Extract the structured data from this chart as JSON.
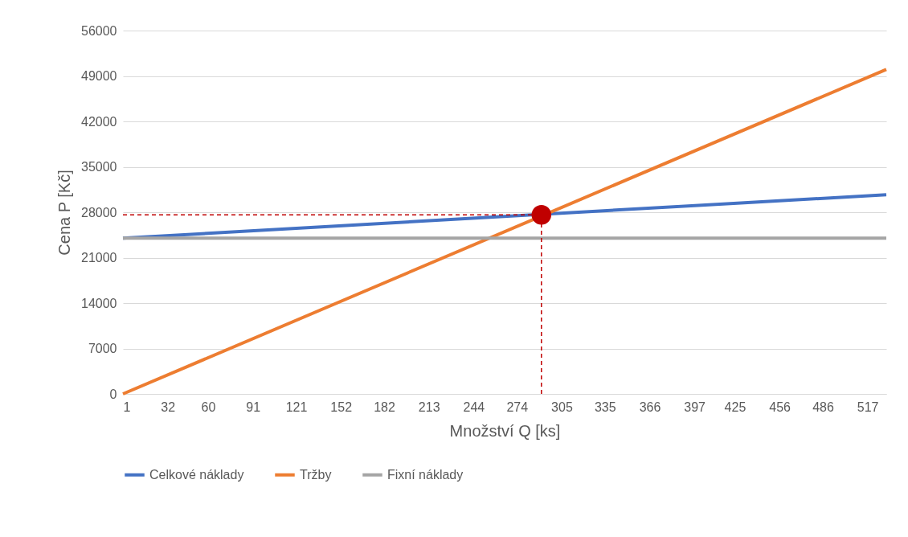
{
  "chart_data": {
    "type": "line",
    "xlabel": "Množství Q [ks]",
    "ylabel": "Cena P [Kč]",
    "xlim": [
      1,
      530
    ],
    "xticks": [
      1,
      32,
      60,
      91,
      121,
      152,
      182,
      213,
      244,
      274,
      305,
      335,
      366,
      397,
      425,
      456,
      486,
      517
    ],
    "ylim": [
      0,
      56000
    ],
    "yticks": [
      0,
      7000,
      14000,
      21000,
      28000,
      35000,
      42000,
      49000,
      56000
    ],
    "grid": "y",
    "legend": "bottom",
    "series": [
      {
        "name": "Celkové náklady",
        "color": "#4472c4",
        "x": [
          1,
          530
        ],
        "values": [
          24000,
          30700
        ]
      },
      {
        "name": "Tržby",
        "color": "#ed7d31",
        "x": [
          1,
          530
        ],
        "values": [
          0,
          50000
        ]
      },
      {
        "name": "Fixní náklady",
        "color": "#a5a5a5",
        "x": [
          1,
          530
        ],
        "values": [
          24000,
          24000
        ]
      },
      {
        "type": "scatter",
        "color": "#c00000",
        "x": [
          291
        ],
        "values": [
          27600
        ]
      }
    ],
    "ref_lines": [
      {
        "axis": "x",
        "value": 291,
        "color": "#c00000",
        "line_style": "dashed"
      },
      {
        "axis": "y",
        "value": 27600,
        "color": "#c00000",
        "line_style": "dashed"
      }
    ]
  }
}
